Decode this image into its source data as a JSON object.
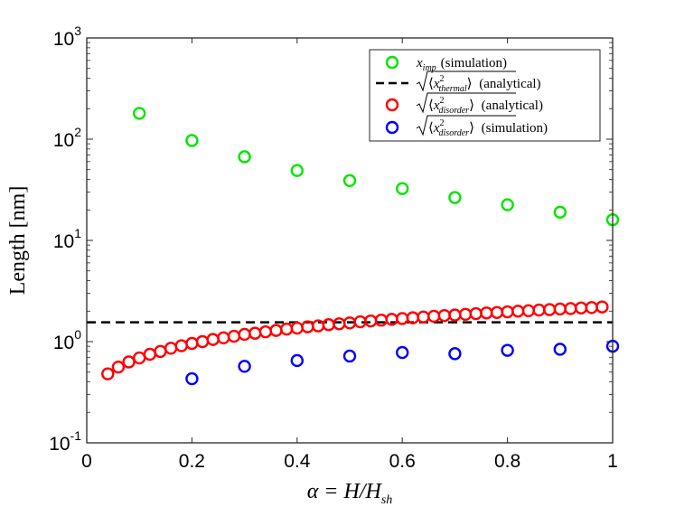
{
  "chart_data": {
    "type": "scatter",
    "xlabel": "α = H/H_sh",
    "ylabel": "Length [nm]",
    "xlim": [
      0,
      1
    ],
    "ylim_log10": [
      -1,
      3
    ],
    "yscale": "log",
    "x_ticks": [
      "0",
      "0.2",
      "0.4",
      "0.6",
      "0.8",
      "1"
    ],
    "x_tick_values": [
      0,
      0.2,
      0.4,
      0.6,
      0.8,
      1
    ],
    "y_tick_base": "10",
    "y_tick_exponents": [
      "-1",
      "0",
      "1",
      "2",
      "3"
    ],
    "y_tick_values": [
      -1,
      0,
      1,
      2,
      3
    ],
    "series": [
      {
        "name": "x_imp (simulation)",
        "legend_main": "x",
        "legend_sub": "imp",
        "legend_note": "(simulation)",
        "color": "#00e600",
        "marker": "circle",
        "x": [
          0.1,
          0.2,
          0.3,
          0.4,
          0.5,
          0.6,
          0.7,
          0.8,
          0.9,
          1.0
        ],
        "y": [
          180,
          97,
          67,
          49,
          39,
          32.5,
          26.5,
          22.5,
          19,
          16
        ]
      },
      {
        "name": "sqrt(<x^2_thermal>) (analytical)",
        "legend_main": "x",
        "legend_sup": "2",
        "legend_sub": "thermal",
        "legend_note": "(analytical)",
        "color": "#000000",
        "marker": "dashed-line",
        "x": [
          0,
          1
        ],
        "y": [
          1.55,
          1.55
        ]
      },
      {
        "name": "sqrt(<x^2_disorder>) (analytical)",
        "legend_main": "x",
        "legend_sup": "2",
        "legend_sub": "disorder",
        "legend_note": "(analytical)",
        "color": "#ff0000",
        "marker": "circle",
        "x": [
          0.04,
          0.06,
          0.08,
          0.1,
          0.12,
          0.14,
          0.16,
          0.18,
          0.2,
          0.22,
          0.24,
          0.26,
          0.28,
          0.3,
          0.32,
          0.34,
          0.36,
          0.38,
          0.4,
          0.42,
          0.44,
          0.46,
          0.48,
          0.5,
          0.52,
          0.54,
          0.56,
          0.58,
          0.6,
          0.62,
          0.64,
          0.66,
          0.68,
          0.7,
          0.72,
          0.74,
          0.76,
          0.78,
          0.8,
          0.82,
          0.84,
          0.86,
          0.88,
          0.9,
          0.92,
          0.94,
          0.96,
          0.98
        ],
        "y": [
          0.48,
          0.56,
          0.63,
          0.69,
          0.75,
          0.8,
          0.86,
          0.91,
          0.96,
          1.0,
          1.05,
          1.09,
          1.13,
          1.18,
          1.21,
          1.25,
          1.29,
          1.33,
          1.36,
          1.4,
          1.43,
          1.47,
          1.5,
          1.53,
          1.57,
          1.6,
          1.63,
          1.66,
          1.69,
          1.72,
          1.75,
          1.78,
          1.81,
          1.83,
          1.86,
          1.89,
          1.92,
          1.94,
          1.97,
          2.0,
          2.02,
          2.05,
          2.07,
          2.1,
          2.12,
          2.15,
          2.17,
          2.2
        ]
      },
      {
        "name": "sqrt(<x^2_disorder>) (simulation)",
        "legend_main": "x",
        "legend_sup": "2",
        "legend_sub": "disorder",
        "legend_note": "(simulation)",
        "color": "#0000ff",
        "marker": "circle",
        "x": [
          0.2,
          0.3,
          0.4,
          0.5,
          0.6,
          0.7,
          0.8,
          0.9,
          1.0
        ],
        "y": [
          0.43,
          0.57,
          0.65,
          0.72,
          0.78,
          0.76,
          0.82,
          0.84,
          0.9
        ]
      }
    ],
    "legend_position": "top-right",
    "grid": false
  }
}
